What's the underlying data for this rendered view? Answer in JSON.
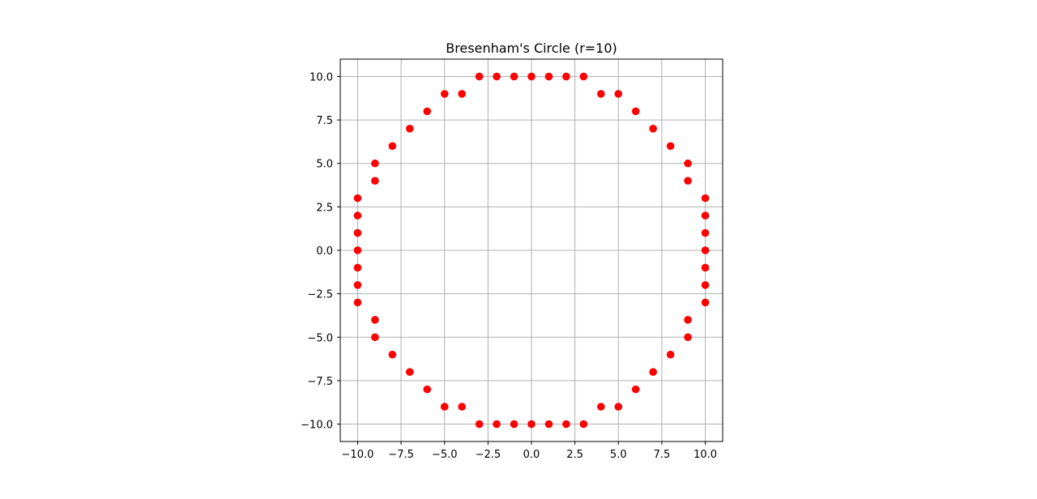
{
  "chart_data": {
    "type": "scatter",
    "title": "Bresenham's Circle (r=10)",
    "xlabel": "",
    "ylabel": "",
    "xlim": [
      -11,
      11
    ],
    "ylim": [
      -11,
      11
    ],
    "xticks": [
      -10.0,
      -7.5,
      -5.0,
      -2.5,
      0.0,
      2.5,
      5.0,
      7.5,
      10.0
    ],
    "yticks": [
      -10.0,
      -7.5,
      -5.0,
      -2.5,
      0.0,
      2.5,
      5.0,
      7.5,
      10.0
    ],
    "xtick_labels": [
      "−10.0",
      "−7.5",
      "−5.0",
      "−2.5",
      "0.0",
      "2.5",
      "5.0",
      "7.5",
      "10.0"
    ],
    "ytick_labels": [
      "−10.0",
      "−7.5",
      "−5.0",
      "−2.5",
      "0.0",
      "2.5",
      "5.0",
      "7.5",
      "10.0"
    ],
    "grid": true,
    "legend": "none",
    "marker_color": "#ff0000",
    "series": [
      {
        "points": [
          [
            0,
            10
          ],
          [
            1,
            10
          ],
          [
            2,
            10
          ],
          [
            3,
            10
          ],
          [
            4,
            9
          ],
          [
            5,
            9
          ],
          [
            6,
            8
          ],
          [
            7,
            7
          ],
          [
            8,
            6
          ],
          [
            9,
            5
          ],
          [
            9,
            4
          ],
          [
            10,
            3
          ],
          [
            10,
            2
          ],
          [
            10,
            1
          ],
          [
            0,
            -10
          ],
          [
            1,
            -10
          ],
          [
            2,
            -10
          ],
          [
            3,
            -10
          ],
          [
            4,
            -9
          ],
          [
            5,
            -9
          ],
          [
            6,
            -8
          ],
          [
            7,
            -7
          ],
          [
            8,
            -6
          ],
          [
            9,
            -5
          ],
          [
            9,
            -4
          ],
          [
            10,
            -3
          ],
          [
            10,
            -2
          ],
          [
            10,
            -1
          ],
          [
            -1,
            10
          ],
          [
            -2,
            10
          ],
          [
            -3,
            10
          ],
          [
            -4,
            9
          ],
          [
            -5,
            9
          ],
          [
            -6,
            8
          ],
          [
            -7,
            7
          ],
          [
            -8,
            6
          ],
          [
            -9,
            5
          ],
          [
            -9,
            4
          ],
          [
            -10,
            3
          ],
          [
            -10,
            2
          ],
          [
            -10,
            1
          ],
          [
            -1,
            -10
          ],
          [
            -2,
            -10
          ],
          [
            -3,
            -10
          ],
          [
            -4,
            -9
          ],
          [
            -5,
            -9
          ],
          [
            -6,
            -8
          ],
          [
            -7,
            -7
          ],
          [
            -8,
            -6
          ],
          [
            -9,
            -5
          ],
          [
            -9,
            -4
          ],
          [
            -10,
            -3
          ],
          [
            -10,
            -2
          ],
          [
            -10,
            -1
          ],
          [
            10,
            0
          ],
          [
            -10,
            0
          ]
        ]
      }
    ]
  }
}
